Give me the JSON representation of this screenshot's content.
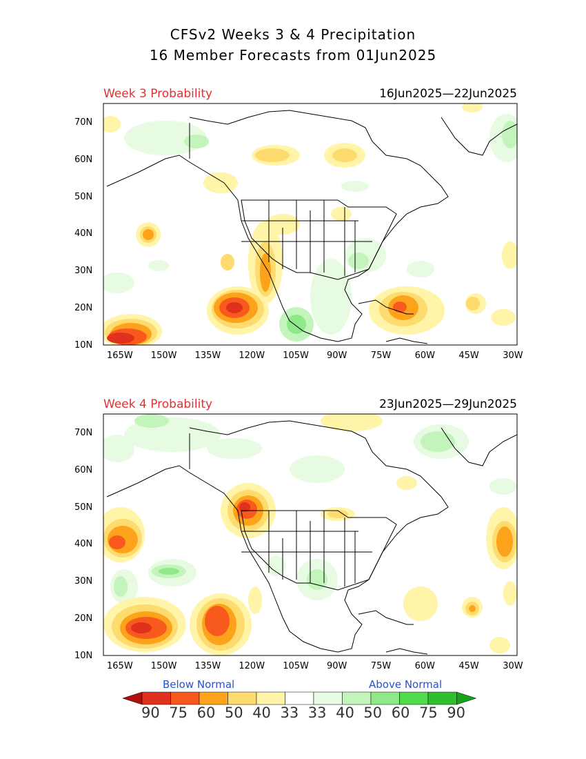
{
  "title_line1": "CFSv2 Weeks 3 & 4 Precipitation",
  "title_line2": "16 Member Forecasts from 01Jun2025",
  "panels": [
    {
      "label": "Week 3 Probability",
      "dates": "16Jun2025—22Jun2025"
    },
    {
      "label": "Week 4 Probability",
      "dates": "23Jun2025—29Jun2025"
    }
  ],
  "lat_labels": [
    "70N",
    "60N",
    "50N",
    "40N",
    "30N",
    "20N",
    "10N"
  ],
  "lon_labels": [
    "165W",
    "150W",
    "135W",
    "120W",
    "105W",
    "90W",
    "75W",
    "60W",
    "45W",
    "30W"
  ],
  "legend": {
    "below": "Below Normal",
    "above": "Above Normal",
    "values": [
      "90",
      "75",
      "60",
      "50",
      "40",
      "33",
      "33",
      "40",
      "50",
      "60",
      "75",
      "90"
    ],
    "colors": [
      "#b01010",
      "#e0301e",
      "#f85a1e",
      "#fca31b",
      "#fedb6e",
      "#fff4a8",
      "#ffffff",
      "#e6fbe2",
      "#c3f4bb",
      "#8fe988",
      "#4fdb4c",
      "#2fbf2c",
      "#15a315"
    ]
  },
  "colors": {
    "label_red": "#e03030",
    "legend_blue": "#2a4fd0"
  }
}
